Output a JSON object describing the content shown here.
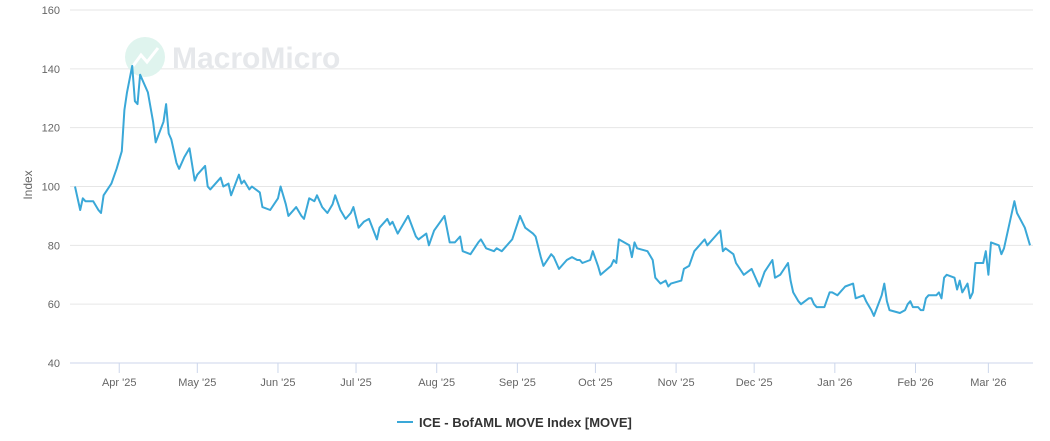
{
  "watermark": "MacroMicro",
  "chart_data": {
    "type": "line",
    "title": "",
    "xlabel": "",
    "ylabel": "Index",
    "ylim": [
      40,
      160
    ],
    "yticks": [
      40,
      60,
      80,
      100,
      120,
      140,
      160
    ],
    "xlim": [
      "2025-03-15",
      "2026-03-17"
    ],
    "xticks": [
      {
        "date": "2025-04-01",
        "label": "Apr '25"
      },
      {
        "date": "2025-05-01",
        "label": "May '25"
      },
      {
        "date": "2025-06-01",
        "label": "Jun '25"
      },
      {
        "date": "2025-07-01",
        "label": "Jul '25"
      },
      {
        "date": "2025-08-01",
        "label": "Aug '25"
      },
      {
        "date": "2025-09-01",
        "label": "Sep '25"
      },
      {
        "date": "2025-10-01",
        "label": "Oct '25"
      },
      {
        "date": "2025-11-01",
        "label": "Nov '25"
      },
      {
        "date": "2025-12-01",
        "label": "Dec '25"
      },
      {
        "date": "2026-01-01",
        "label": "Jan '26"
      },
      {
        "date": "2026-02-01",
        "label": "Feb '26"
      },
      {
        "date": "2026-03-01",
        "label": "Mar '26"
      }
    ],
    "grid": true,
    "legend_position": "bottom",
    "series": [
      {
        "name": "ICE - BofAML MOVE Index [MOVE]",
        "color": "#3aa8d8",
        "points": [
          [
            "2025-03-15",
            100
          ],
          [
            "2025-03-17",
            92
          ],
          [
            "2025-03-18",
            96
          ],
          [
            "2025-03-19",
            95
          ],
          [
            "2025-03-22",
            95
          ],
          [
            "2025-03-24",
            92
          ],
          [
            "2025-03-25",
            91
          ],
          [
            "2025-03-26",
            97
          ],
          [
            "2025-03-29",
            101
          ],
          [
            "2025-03-31",
            106
          ],
          [
            "2025-04-02",
            112
          ],
          [
            "2025-04-03",
            126
          ],
          [
            "2025-04-04",
            132
          ],
          [
            "2025-04-06",
            141
          ],
          [
            "2025-04-07",
            129
          ],
          [
            "2025-04-08",
            128
          ],
          [
            "2025-04-09",
            138
          ],
          [
            "2025-04-12",
            132
          ],
          [
            "2025-04-14",
            122
          ],
          [
            "2025-04-15",
            115
          ],
          [
            "2025-04-18",
            122
          ],
          [
            "2025-04-19",
            128
          ],
          [
            "2025-04-20",
            118
          ],
          [
            "2025-04-21",
            116
          ],
          [
            "2025-04-23",
            108
          ],
          [
            "2025-04-24",
            106
          ],
          [
            "2025-04-26",
            110
          ],
          [
            "2025-04-28",
            113
          ],
          [
            "2025-04-30",
            102
          ],
          [
            "2025-05-01",
            104
          ],
          [
            "2025-05-04",
            107
          ],
          [
            "2025-05-05",
            100
          ],
          [
            "2025-05-06",
            99
          ],
          [
            "2025-05-08",
            101
          ],
          [
            "2025-05-10",
            103
          ],
          [
            "2025-05-11",
            100
          ],
          [
            "2025-05-13",
            101
          ],
          [
            "2025-05-14",
            97
          ],
          [
            "2025-05-17",
            104
          ],
          [
            "2025-05-18",
            101
          ],
          [
            "2025-05-19",
            102
          ],
          [
            "2025-05-21",
            99
          ],
          [
            "2025-05-22",
            100
          ],
          [
            "2025-05-25",
            98
          ],
          [
            "2025-05-26",
            93
          ],
          [
            "2025-05-29",
            92
          ],
          [
            "2025-06-01",
            96
          ],
          [
            "2025-06-02",
            100
          ],
          [
            "2025-06-04",
            94
          ],
          [
            "2025-06-05",
            90
          ],
          [
            "2025-06-08",
            93
          ],
          [
            "2025-06-10",
            90
          ],
          [
            "2025-06-11",
            89
          ],
          [
            "2025-06-13",
            96
          ],
          [
            "2025-06-15",
            95
          ],
          [
            "2025-06-16",
            97
          ],
          [
            "2025-06-18",
            93
          ],
          [
            "2025-06-20",
            91
          ],
          [
            "2025-06-22",
            94
          ],
          [
            "2025-06-23",
            97
          ],
          [
            "2025-06-25",
            92
          ],
          [
            "2025-06-27",
            89
          ],
          [
            "2025-06-29",
            91
          ],
          [
            "2025-06-30",
            93
          ],
          [
            "2025-07-02",
            86
          ],
          [
            "2025-07-04",
            88
          ],
          [
            "2025-07-06",
            89
          ],
          [
            "2025-07-09",
            82
          ],
          [
            "2025-07-10",
            86
          ],
          [
            "2025-07-13",
            89
          ],
          [
            "2025-07-14",
            87
          ],
          [
            "2025-07-15",
            88
          ],
          [
            "2025-07-17",
            84
          ],
          [
            "2025-07-19",
            87
          ],
          [
            "2025-07-21",
            90
          ],
          [
            "2025-07-24",
            83
          ],
          [
            "2025-07-25",
            82
          ],
          [
            "2025-07-28",
            84
          ],
          [
            "2025-07-29",
            80
          ],
          [
            "2025-07-31",
            85
          ],
          [
            "2025-08-04",
            90
          ],
          [
            "2025-08-06",
            81
          ],
          [
            "2025-08-08",
            81
          ],
          [
            "2025-08-10",
            83
          ],
          [
            "2025-08-11",
            78
          ],
          [
            "2025-08-14",
            77
          ],
          [
            "2025-08-17",
            81
          ],
          [
            "2025-08-18",
            82
          ],
          [
            "2025-08-20",
            79
          ],
          [
            "2025-08-23",
            78
          ],
          [
            "2025-08-24",
            79
          ],
          [
            "2025-08-26",
            78
          ],
          [
            "2025-08-30",
            82
          ],
          [
            "2025-09-02",
            90
          ],
          [
            "2025-09-03",
            88
          ],
          [
            "2025-09-04",
            86
          ],
          [
            "2025-09-07",
            84
          ],
          [
            "2025-09-08",
            83
          ],
          [
            "2025-09-10",
            76
          ],
          [
            "2025-09-11",
            73
          ],
          [
            "2025-09-14",
            77
          ],
          [
            "2025-09-15",
            76
          ],
          [
            "2025-09-17",
            72
          ],
          [
            "2025-09-20",
            75
          ],
          [
            "2025-09-22",
            76
          ],
          [
            "2025-09-24",
            75
          ],
          [
            "2025-09-25",
            75
          ],
          [
            "2025-09-26",
            74
          ],
          [
            "2025-09-29",
            75
          ],
          [
            "2025-09-30",
            78
          ],
          [
            "2025-10-02",
            73
          ],
          [
            "2025-10-03",
            70
          ],
          [
            "2025-10-07",
            73
          ],
          [
            "2025-10-08",
            75
          ],
          [
            "2025-10-09",
            74
          ],
          [
            "2025-10-10",
            82
          ],
          [
            "2025-10-14",
            80
          ],
          [
            "2025-10-15",
            76
          ],
          [
            "2025-10-16",
            81
          ],
          [
            "2025-10-17",
            79
          ],
          [
            "2025-10-21",
            78
          ],
          [
            "2025-10-23",
            75
          ],
          [
            "2025-10-24",
            69
          ],
          [
            "2025-10-26",
            67
          ],
          [
            "2025-10-28",
            68
          ],
          [
            "2025-10-29",
            66
          ],
          [
            "2025-10-30",
            67
          ],
          [
            "2025-11-03",
            68
          ],
          [
            "2025-11-04",
            72
          ],
          [
            "2025-11-06",
            73
          ],
          [
            "2025-11-08",
            78
          ],
          [
            "2025-11-12",
            82
          ],
          [
            "2025-11-13",
            80
          ],
          [
            "2025-11-16",
            83
          ],
          [
            "2025-11-18",
            85
          ],
          [
            "2025-11-19",
            78
          ],
          [
            "2025-11-20",
            79
          ],
          [
            "2025-11-23",
            77
          ],
          [
            "2025-11-24",
            74
          ],
          [
            "2025-11-27",
            70
          ],
          [
            "2025-11-30",
            72
          ],
          [
            "2025-12-02",
            68
          ],
          [
            "2025-12-03",
            66
          ],
          [
            "2025-12-05",
            71
          ],
          [
            "2025-12-08",
            75
          ],
          [
            "2025-12-09",
            69
          ],
          [
            "2025-12-11",
            70
          ],
          [
            "2025-12-14",
            74
          ],
          [
            "2025-12-15",
            68
          ],
          [
            "2025-12-16",
            64
          ],
          [
            "2025-12-18",
            61
          ],
          [
            "2025-12-19",
            60
          ],
          [
            "2025-12-22",
            62
          ],
          [
            "2025-12-23",
            62
          ],
          [
            "2025-12-24",
            60
          ],
          [
            "2025-12-25",
            59
          ],
          [
            "2025-12-28",
            59
          ],
          [
            "2025-12-30",
            64
          ],
          [
            "2025-12-31",
            64
          ],
          [
            "2026-01-02",
            63
          ],
          [
            "2026-01-05",
            66
          ],
          [
            "2026-01-08",
            67
          ],
          [
            "2026-01-09",
            62
          ],
          [
            "2026-01-12",
            63
          ],
          [
            "2026-01-13",
            61
          ],
          [
            "2026-01-15",
            58
          ],
          [
            "2026-01-16",
            56
          ],
          [
            "2026-01-19",
            63
          ],
          [
            "2026-01-20",
            67
          ],
          [
            "2026-01-21",
            61
          ],
          [
            "2026-01-22",
            58
          ],
          [
            "2026-01-26",
            57
          ],
          [
            "2026-01-28",
            58
          ],
          [
            "2026-01-29",
            60
          ],
          [
            "2026-01-30",
            61
          ],
          [
            "2026-01-31",
            59
          ],
          [
            "2026-02-02",
            59
          ],
          [
            "2026-02-03",
            58
          ],
          [
            "2026-02-04",
            58
          ],
          [
            "2026-02-05",
            62
          ],
          [
            "2026-02-06",
            63
          ],
          [
            "2026-02-09",
            63
          ],
          [
            "2026-02-10",
            64
          ],
          [
            "2026-02-11",
            62
          ],
          [
            "2026-02-12",
            69
          ],
          [
            "2026-02-13",
            70
          ],
          [
            "2026-02-16",
            69
          ],
          [
            "2026-02-17",
            65
          ],
          [
            "2026-02-18",
            68
          ],
          [
            "2026-02-19",
            64
          ],
          [
            "2026-02-21",
            67
          ],
          [
            "2026-02-22",
            62
          ],
          [
            "2026-02-23",
            64
          ],
          [
            "2026-02-24",
            74
          ],
          [
            "2026-02-27",
            74
          ],
          [
            "2026-02-28",
            78
          ],
          [
            "2026-03-01",
            70
          ],
          [
            "2026-03-02",
            81
          ],
          [
            "2026-03-05",
            80
          ],
          [
            "2026-03-06",
            77
          ],
          [
            "2026-03-07",
            79
          ],
          [
            "2026-03-11",
            95
          ],
          [
            "2026-03-12",
            91
          ],
          [
            "2026-03-15",
            86
          ],
          [
            "2026-03-17",
            80
          ]
        ]
      }
    ]
  }
}
